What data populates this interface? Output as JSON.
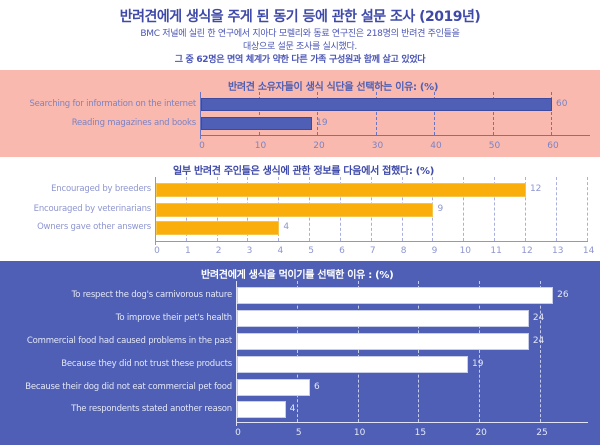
{
  "header": {
    "title": "반려견에게 생식을 주게 된 동기 등에 관한 설문 조사 (2019년)",
    "line1": "BMC 저널에 실린 한 연구에서 지아다 모렐리와 동료 연구진은 218명의 반려견 주인들을",
    "line2": "대상으로 설문 조사를 실시했다.",
    "line3": "그 중 62명은 면역 체계가 약한 다른 가족 구성원과 함께 살고 있었다"
  },
  "colors": {
    "panel1_bg": "#fab9ae",
    "panel2_bg": "#ffffff",
    "panel3_bg": "#4e5fb5",
    "bar1": "#4e5fb5",
    "bar2": "#f9ae0b",
    "bar3": "#ffffff"
  },
  "chart_data": [
    {
      "type": "bar",
      "orientation": "horizontal",
      "title": "반려견 소유자들이 생식 식단을 선택하는 이유: (%)",
      "categories": [
        "Searching for information on the internet",
        "Reading magazines and books"
      ],
      "values": [
        60,
        19
      ],
      "xlim": [
        0,
        66
      ],
      "xticks": [
        0,
        10,
        20,
        30,
        40,
        50,
        60
      ],
      "grid": true,
      "xlabel": "",
      "ylabel": ""
    },
    {
      "type": "bar",
      "orientation": "horizontal",
      "title": "일부 반려견 주인들은 생식에 관한 정보를 다음에서 접했다: (%)",
      "categories": [
        "Encouraged by breeders",
        "Encouraged by veterinarians",
        "Owners gave other answers"
      ],
      "values": [
        12,
        9,
        4
      ],
      "xlim": [
        0,
        14.2
      ],
      "xticks": [
        0,
        1,
        2,
        3,
        4,
        5,
        6,
        7,
        8,
        9,
        10,
        11,
        12,
        13,
        14
      ],
      "grid": true,
      "xlabel": "",
      "ylabel": ""
    },
    {
      "type": "bar",
      "orientation": "horizontal",
      "title": "반려견에게 생식을 먹이기를 선택한 이유 : (%)",
      "categories": [
        "To respect the dog's carnivorous nature",
        "To improve their pet's health",
        "Commercial food had caused problems in the past",
        "Because they did not trust these products",
        "Because their dog did not eat commercial pet food",
        "The respondents stated another reason"
      ],
      "values": [
        26,
        24,
        24,
        19,
        6,
        4
      ],
      "xlim": [
        0,
        29
      ],
      "xticks": [
        0,
        5,
        10,
        15,
        20,
        25
      ],
      "grid": true,
      "xlabel": "",
      "ylabel": ""
    }
  ]
}
